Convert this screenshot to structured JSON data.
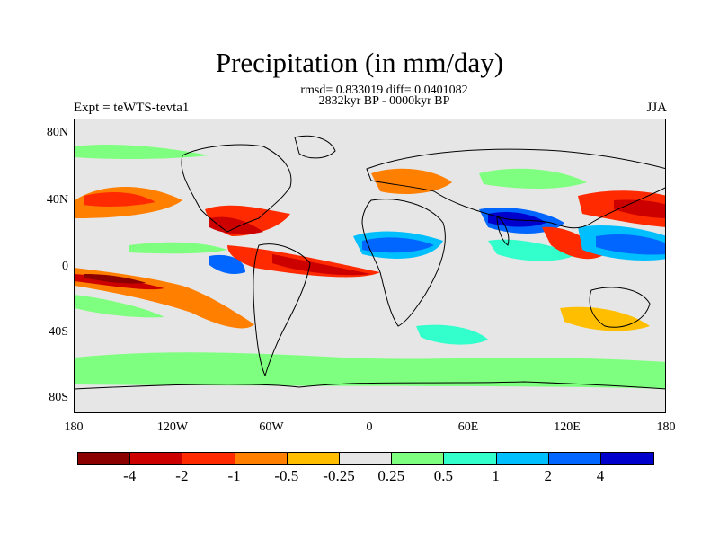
{
  "title": "Precipitation (in mm/day)",
  "subtitle_stats": "rmsd= 0.833019 diff= 0.0401082",
  "subtitle_period": "2832kyr BP - 0000kyr BP",
  "left_label": "Expt = teWTS-tevta1",
  "right_label": "JJA",
  "y_ticks": [
    "80N",
    "40N",
    "0",
    "40S",
    "80S"
  ],
  "x_ticks": [
    "180",
    "120W",
    "60W",
    "0",
    "60E",
    "120E",
    "180"
  ],
  "colorbar": {
    "colors": [
      "#8b0000",
      "#cd0000",
      "#ff2a00",
      "#ff7f00",
      "#ffbf00",
      "#e6e6e6",
      "#7fff7f",
      "#33ffcc",
      "#00bfff",
      "#0066ff",
      "#0000cd"
    ],
    "labels": [
      "-4",
      "-2",
      "-1",
      "-0.5",
      "-0.25",
      "0.25",
      "0.5",
      "1",
      "2",
      "4"
    ]
  },
  "map_data": {
    "projection": "cylindrical equidistant",
    "lon_range": [
      -180,
      180
    ],
    "lat_range": [
      -90,
      90
    ],
    "variable": "precipitation difference",
    "units": "mm/day"
  }
}
